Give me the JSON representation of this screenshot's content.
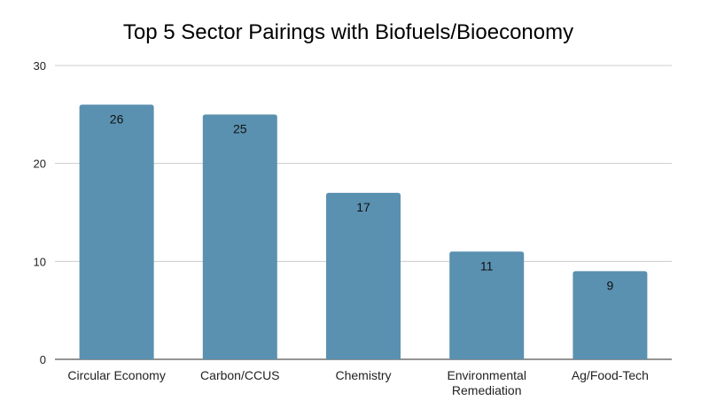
{
  "chart_data": {
    "type": "bar",
    "title": "Top 5 Sector Pairings with Biofuels/Bioeconomy",
    "xlabel": "",
    "ylabel": "",
    "categories": [
      "Circular Economy",
      "Carbon/CCUS",
      "Chemistry",
      "Environmental Remediation",
      "Ag/Food-Tech"
    ],
    "category_label_lines": [
      [
        "Circular Economy"
      ],
      [
        "Carbon/CCUS"
      ],
      [
        "Chemistry"
      ],
      [
        "Environmental",
        "Remediation"
      ],
      [
        "Ag/Food-Tech"
      ]
    ],
    "values": [
      26,
      25,
      17,
      11,
      9
    ],
    "data_labels": [
      "26",
      "25",
      "17",
      "11",
      "9"
    ],
    "ylim": [
      0,
      30
    ],
    "yticks": [
      0,
      10,
      20,
      30
    ],
    "ytick_labels": [
      "0",
      "10",
      "20",
      "30"
    ],
    "grid": true,
    "legend": "none",
    "colors": {
      "bar": "#5a91b0",
      "grid": "#cccccc",
      "axis": "#555555",
      "text": "#222222"
    }
  }
}
